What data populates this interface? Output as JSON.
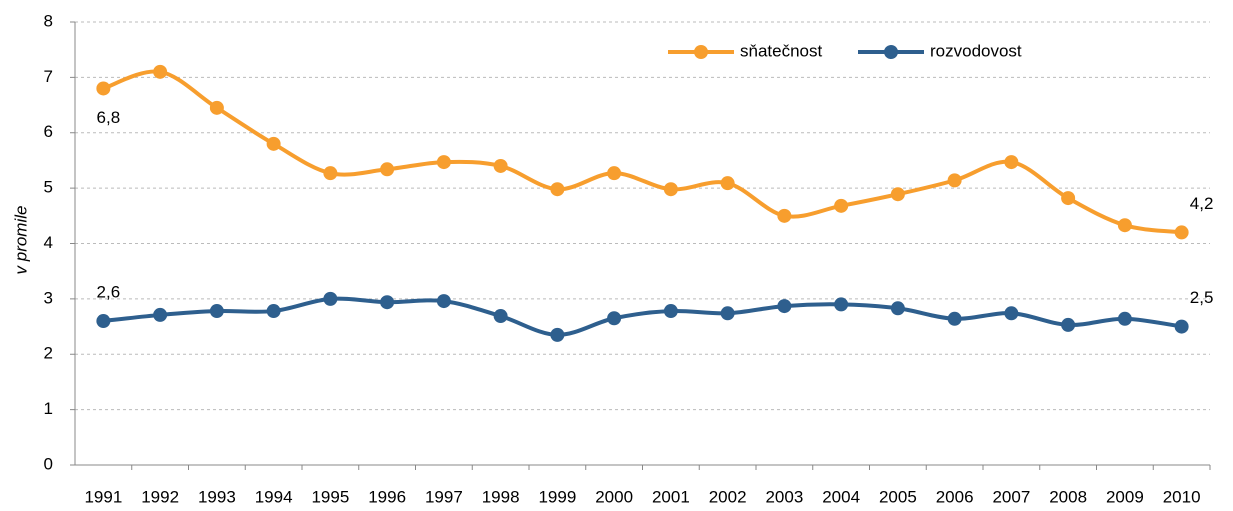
{
  "chart_data": {
    "type": "line",
    "y_label": "v promile",
    "categories": [
      "1991",
      "1992",
      "1993",
      "1994",
      "1995",
      "1996",
      "1997",
      "1998",
      "1999",
      "2000",
      "2001",
      "2002",
      "2003",
      "2004",
      "2005",
      "2006",
      "2007",
      "2008",
      "2009",
      "2010"
    ],
    "series": [
      {
        "name": "sňatečnost",
        "color": "#f79e2e",
        "values": [
          6.8,
          7.1,
          6.45,
          5.8,
          5.27,
          5.34,
          5.47,
          5.4,
          4.98,
          5.27,
          4.98,
          5.09,
          4.5,
          4.68,
          4.89,
          5.14,
          5.47,
          4.82,
          4.33,
          4.2
        ],
        "value_labels": [
          "6,8",
          null,
          null,
          null,
          null,
          null,
          null,
          null,
          null,
          null,
          null,
          null,
          null,
          null,
          null,
          null,
          null,
          null,
          null,
          "4,2"
        ]
      },
      {
        "name": "rozvodovost",
        "color": "#2e5f8e",
        "values": [
          2.6,
          2.71,
          2.78,
          2.78,
          3.0,
          2.94,
          2.96,
          2.69,
          2.35,
          2.65,
          2.78,
          2.74,
          2.87,
          2.9,
          2.83,
          2.64,
          2.74,
          2.53,
          2.64,
          2.5
        ],
        "value_labels": [
          "2,6",
          null,
          null,
          null,
          null,
          null,
          null,
          null,
          null,
          null,
          null,
          null,
          null,
          null,
          null,
          null,
          null,
          null,
          null,
          "2,5"
        ]
      }
    ],
    "ylim": [
      0,
      8
    ],
    "yticks": [
      0,
      1,
      2,
      3,
      4,
      5,
      6,
      7,
      8
    ],
    "grid": true,
    "legend": "top-right"
  }
}
